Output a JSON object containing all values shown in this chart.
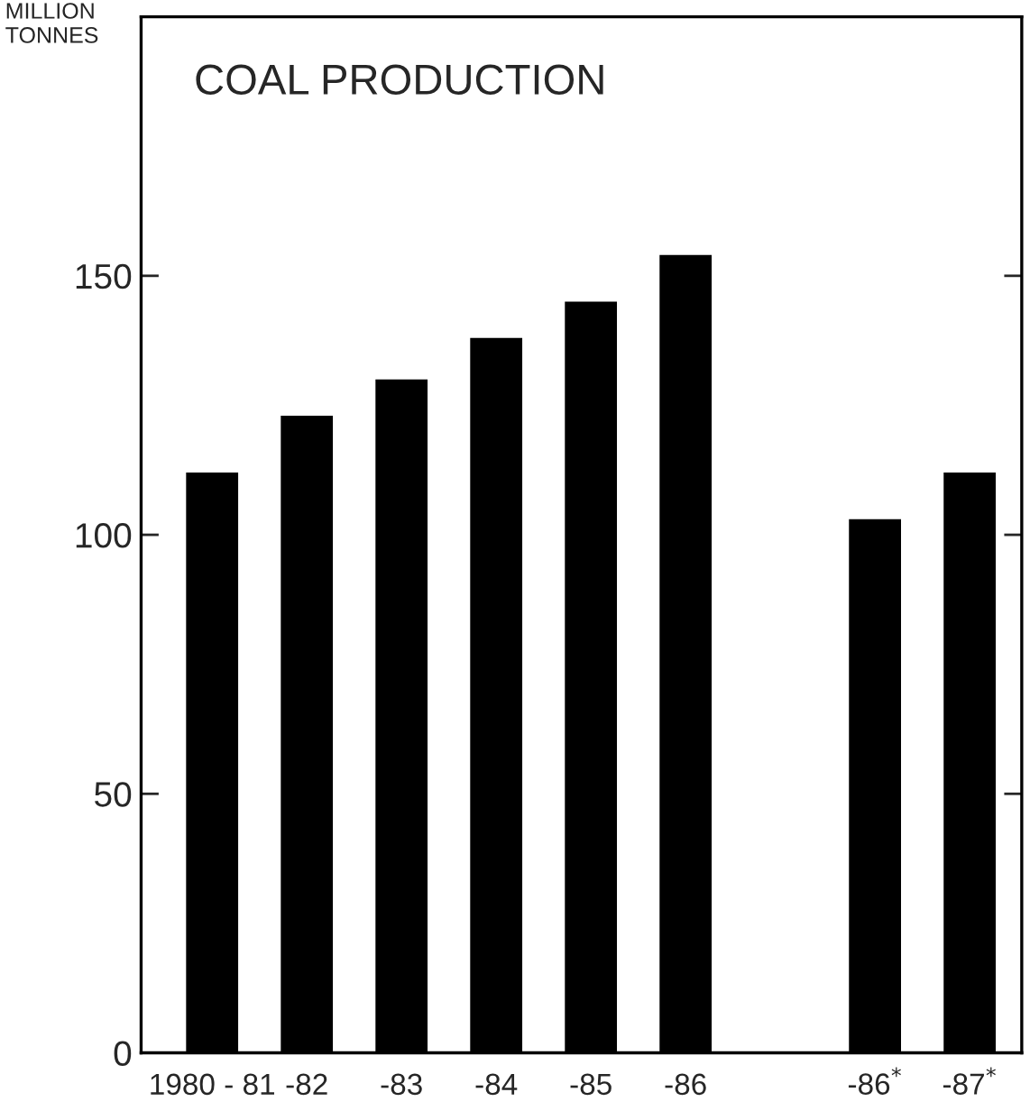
{
  "chart_data": {
    "type": "bar",
    "title": "COAL PRODUCTION",
    "ylabel": "MILLION\nTONNES",
    "categories": [
      "1980 - 81",
      "-82",
      "-83",
      "-84",
      "-85",
      "-86",
      null,
      "-86$^{*}$",
      "-87$^{*}$"
    ],
    "values": [
      112,
      123,
      130,
      138,
      145,
      154,
      null,
      103,
      112
    ],
    "color": "#000000",
    "ylim": [
      0,
      200
    ],
    "yticks": [
      0,
      50,
      100,
      150
    ],
    "grid": false,
    "legend": false
  }
}
